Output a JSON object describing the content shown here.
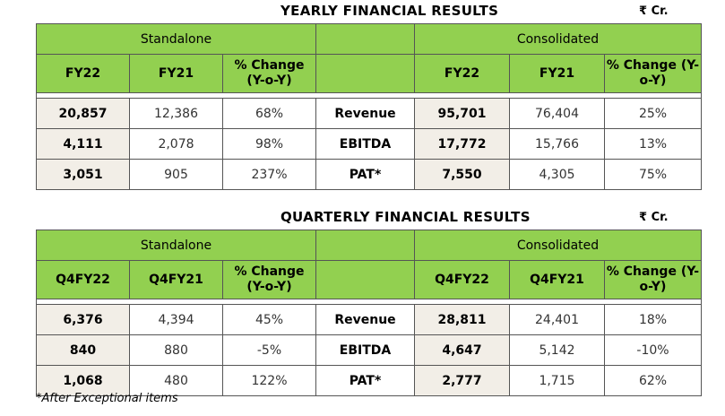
{
  "unit_label": "₹ Cr.",
  "yearly": {
    "title": "YEARLY FINANCIAL RESULTS",
    "standalone_label": "Standalone",
    "consolidated_label": "Consolidated",
    "standalone_cols": [
      "FY22",
      "FY21",
      "% Change (Y-o-Y)"
    ],
    "consolidated_cols": [
      "FY22",
      "FY21",
      "% Change (Y-o-Y)"
    ],
    "rows": [
      {
        "metric": "Revenue",
        "s_cur": "20,857",
        "s_prev": "12,386",
        "s_chg": "68%",
        "c_cur": "95,701",
        "c_prev": "76,404",
        "c_chg": "25%"
      },
      {
        "metric": "EBITDA",
        "s_cur": "4,111",
        "s_prev": "2,078",
        "s_chg": "98%",
        "c_cur": "17,772",
        "c_prev": "15,766",
        "c_chg": "13%"
      },
      {
        "metric": "PAT*",
        "s_cur": "3,051",
        "s_prev": "905",
        "s_chg": "237%",
        "c_cur": "7,550",
        "c_prev": "4,305",
        "c_chg": "75%"
      }
    ]
  },
  "quarterly": {
    "title": "QUARTERLY FINANCIAL RESULTS",
    "standalone_label": "Standalone",
    "consolidated_label": "Consolidated",
    "standalone_cols": [
      "Q4FY22",
      "Q4FY21",
      "% Change (Y-o-Y)"
    ],
    "consolidated_cols": [
      "Q4FY22",
      "Q4FY21",
      "% Change (Y-o-Y)"
    ],
    "rows": [
      {
        "metric": "Revenue",
        "s_cur": "6,376",
        "s_prev": "4,394",
        "s_chg": "45%",
        "c_cur": "28,811",
        "c_prev": "24,401",
        "c_chg": "18%"
      },
      {
        "metric": "EBITDA",
        "s_cur": "840",
        "s_prev": "880",
        "s_chg": "-5%",
        "c_cur": "4,647",
        "c_prev": "5,142",
        "c_chg": "-10%"
      },
      {
        "metric": "PAT*",
        "s_cur": "1,068",
        "s_prev": "480",
        "s_chg": "122%",
        "c_cur": "2,777",
        "c_prev": "1,715",
        "c_chg": "62%"
      }
    ]
  },
  "footnote": "*After Exceptional items"
}
